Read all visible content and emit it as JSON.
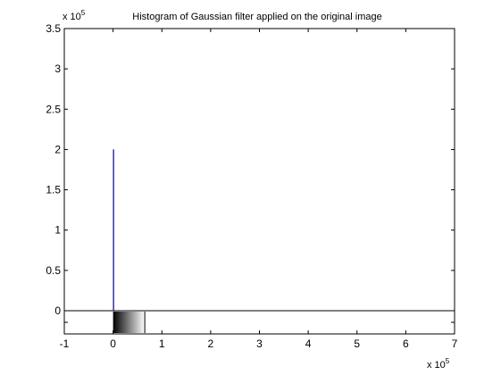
{
  "chart_data": {
    "type": "bar",
    "title": "Histogram of Gaussian filter applied on the original image",
    "xlabel": "",
    "ylabel": "",
    "x_exponent_label": {
      "base": "x 10",
      "exp": "5"
    },
    "y_exponent_label": {
      "base": "x 10",
      "exp": "5"
    },
    "xlim": [
      -1,
      7
    ],
    "ylim": [
      0,
      3.5
    ],
    "xticks": [
      -1,
      0,
      1,
      2,
      3,
      4,
      5,
      6,
      7
    ],
    "xtick_labels": [
      "-1",
      "0",
      "1",
      "2",
      "3",
      "4",
      "5",
      "6",
      "7"
    ],
    "yticks": [
      0,
      0.5,
      1,
      1.5,
      2,
      2.5,
      3,
      3.5
    ],
    "ytick_labels": [
      "0",
      "0.5",
      "1",
      "1.5",
      "2",
      "2.5",
      "3",
      "3.5"
    ],
    "grid": false,
    "legend": "none",
    "series": [
      {
        "x": [
          0
        ],
        "values": [
          2
        ],
        "color": "#00008b"
      }
    ],
    "colorbar": {
      "x_range": [
        0,
        0.65
      ],
      "from_color": "#000000",
      "to_color": "#ffffff"
    }
  }
}
